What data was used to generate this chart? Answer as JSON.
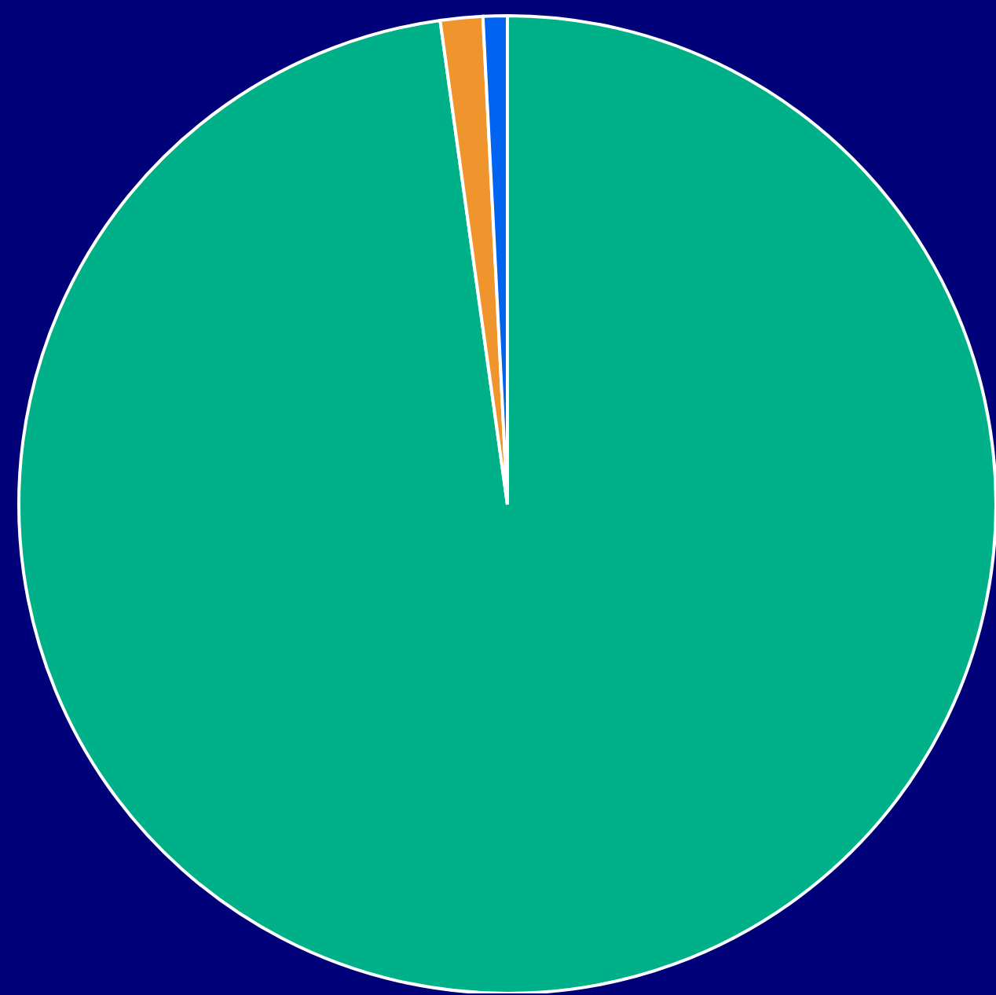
{
  "chart_data": {
    "type": "pie",
    "categories": [
      null,
      null,
      null
    ],
    "values": [
      97.8,
      1.4,
      0.8
    ],
    "colors": [
      "#00b088",
      "#f0952e",
      "#0064f0"
    ]
  }
}
